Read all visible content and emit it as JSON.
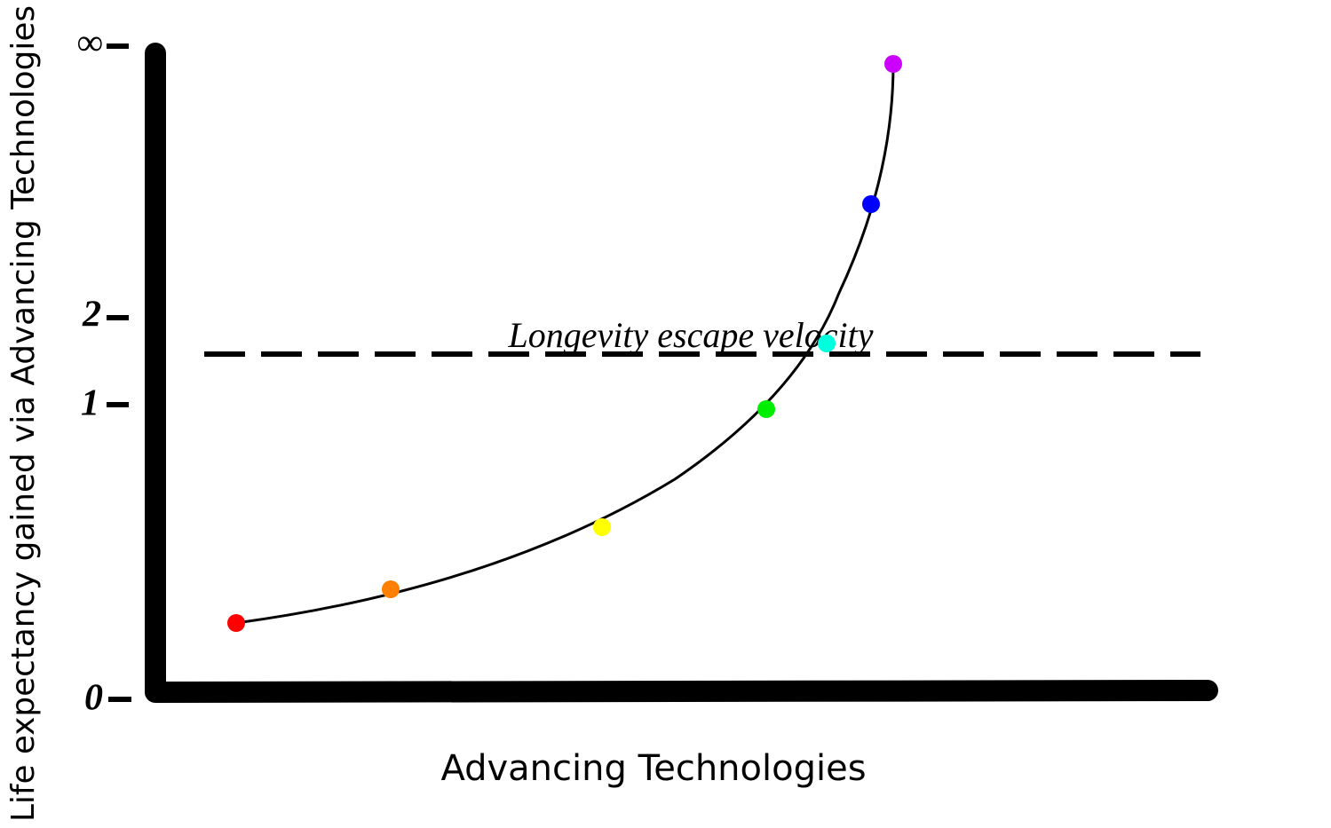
{
  "y_axis": {
    "label": "Life expectancy gained via Advancing Technologies",
    "ticks": [
      "0",
      "1",
      "2",
      "∞"
    ]
  },
  "x_axis": {
    "label": "Advancing Technologies"
  },
  "annotation": "Longevity escape velocity"
}
